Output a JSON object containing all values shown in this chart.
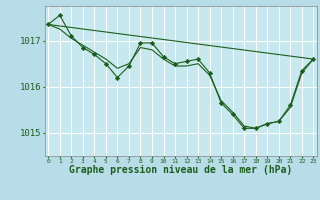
{
  "background_color": "#b8dde8",
  "plot_bg_color": "#c8e8f0",
  "grid_color": "#ffffff",
  "line_color": "#1a5e1a",
  "marker_color": "#1a5e1a",
  "xlabel": "Graphe pression niveau de la mer (hPa)",
  "yticks": [
    1015,
    1016,
    1017
  ],
  "xticks": [
    0,
    1,
    2,
    3,
    4,
    5,
    6,
    7,
    8,
    9,
    10,
    11,
    12,
    13,
    14,
    15,
    16,
    17,
    18,
    19,
    20,
    21,
    22,
    23
  ],
  "ylim": [
    1014.5,
    1017.75
  ],
  "xlim": [
    -0.3,
    23.3
  ],
  "series_main": {
    "x": [
      0,
      1,
      2,
      3,
      4,
      5,
      6,
      7,
      8,
      9,
      10,
      11,
      12,
      13,
      14,
      15,
      16,
      17,
      18,
      19,
      20,
      21,
      22,
      23
    ],
    "y": [
      1017.35,
      1017.55,
      1017.1,
      1016.85,
      1016.7,
      1016.5,
      1016.2,
      1016.45,
      1016.95,
      1016.95,
      1016.65,
      1016.5,
      1016.55,
      1016.6,
      1016.3,
      1015.65,
      1015.4,
      1015.1,
      1015.1,
      1015.2,
      1015.25,
      1015.6,
      1016.35,
      1016.6
    ]
  },
  "series_smooth": {
    "x": [
      0,
      1,
      2,
      3,
      4,
      5,
      6,
      7,
      8,
      9,
      10,
      11,
      12,
      13,
      14,
      15,
      16,
      17,
      18,
      19,
      20,
      21,
      22,
      23
    ],
    "y": [
      1017.35,
      1017.25,
      1017.05,
      1016.9,
      1016.75,
      1016.6,
      1016.4,
      1016.5,
      1016.85,
      1016.8,
      1016.6,
      1016.45,
      1016.45,
      1016.5,
      1016.25,
      1015.7,
      1015.45,
      1015.15,
      1015.1,
      1015.2,
      1015.25,
      1015.55,
      1016.3,
      1016.6
    ]
  },
  "series_trend": {
    "x": [
      0,
      23
    ],
    "y": [
      1017.35,
      1016.6
    ]
  }
}
